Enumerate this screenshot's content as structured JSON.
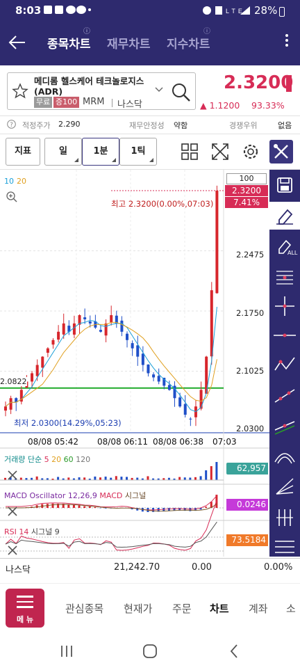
{
  "status_bar": {
    "time": "8:03",
    "left_icons": [
      "image-icon",
      "gallery-icon",
      "chat-icon",
      "chat-icon",
      "dot-icon"
    ],
    "right_icons": [
      "alarm-icon",
      "mute-icon",
      "lte-icon",
      "signal-icon"
    ],
    "lte_label": "LTE",
    "battery": "28%"
  },
  "header": {
    "tabs": [
      {
        "label": "종목차트",
        "active": true,
        "badge": "ⓘ"
      },
      {
        "label": "재무차트",
        "active": false,
        "badge": ""
      },
      {
        "label": "지수차트",
        "active": false,
        "badge": "ⓘ"
      }
    ]
  },
  "stock": {
    "name": "메디롬 헬스케어 테크놀로지스(ADR)",
    "tag_free": "무료",
    "tag_margin": "증100",
    "ticker": "MRM",
    "exchange": "나스닥",
    "price": "2.3200",
    "change": "▲ 1.1200",
    "change_pct": "93.33%",
    "accent": "#d72c56"
  },
  "metrics": {
    "fair_price_label": "적정주가",
    "fair_price_value": "2.290",
    "stability_label": "재무안정성",
    "stability_value": "약함",
    "rank_label": "경쟁우위",
    "rank_value": "없음"
  },
  "toolbar": {
    "indicator": "지표",
    "day": "일",
    "minute": "1분",
    "tick": "1틱"
  },
  "chart": {
    "ma_label_1": "10",
    "ma_label_2": "20",
    "count_box": "100",
    "price_tag": "2.3200",
    "pct_tag": "7.41%",
    "high_label": "최고 2.3200(0.00%,07:03)",
    "low_label": "최저 2.0300(14.29%,05:23)",
    "green_line_label": "2.0822",
    "y_ticks": [
      "2.2475",
      "2.1750",
      "2.1025",
      "2.0300"
    ],
    "x_ticks": [
      "08/08 05:42",
      "08/08 06:11",
      "08/08 06:38",
      "07:03"
    ],
    "volume_label": "거래량 단순 5 20 60 120",
    "volume_value": "62,957",
    "macd_label_1": "MACD Oscillator 12,26,9",
    "macd_label_2": "MACD",
    "macd_label_3": "시그널",
    "macd_value": "0.0246",
    "rsi_label_1": "RSI 14",
    "rsi_label_2": "시그널 9",
    "rsi_value": "73.5184"
  },
  "chart_data": {
    "type": "candlestick",
    "y_range": [
      2.03,
      2.32
    ],
    "high": 2.32,
    "low": 2.03,
    "reference_line": 2.0822,
    "last": 2.32
  },
  "footer": {
    "index_name": "나스닥",
    "index_value": "21,242.70",
    "index_change": "0.00",
    "index_pct": "0.00%",
    "menu": "메 뉴",
    "nav": [
      "관심종목",
      "현재가",
      "주문",
      "차트",
      "계좌",
      "소"
    ]
  }
}
